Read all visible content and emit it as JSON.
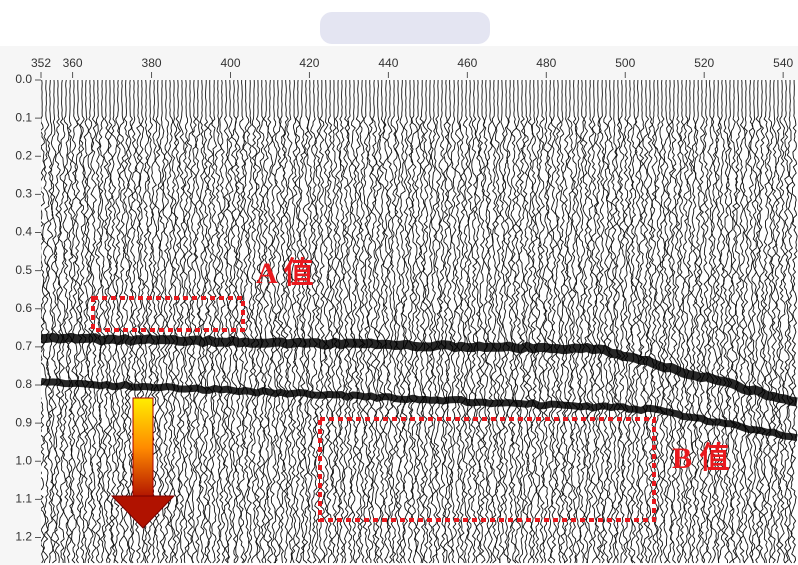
{
  "chart_data": {
    "type": "seismic",
    "xlim": [
      352,
      543
    ],
    "xticks": [
      352,
      360,
      380,
      400,
      420,
      440,
      460,
      480,
      500,
      520,
      540
    ],
    "ylim": [
      0,
      1.28
    ],
    "yticks": [
      {
        "value": 0,
        "label": "0.0"
      },
      0.1,
      0.2,
      0.3,
      0.4,
      0.5,
      0.6,
      0.7,
      0.8,
      0.9,
      {
        "value": 1,
        "label": "1.0"
      },
      1.1,
      1.2
    ],
    "annotations": [
      "A 值",
      "B 值"
    ]
  }
}
